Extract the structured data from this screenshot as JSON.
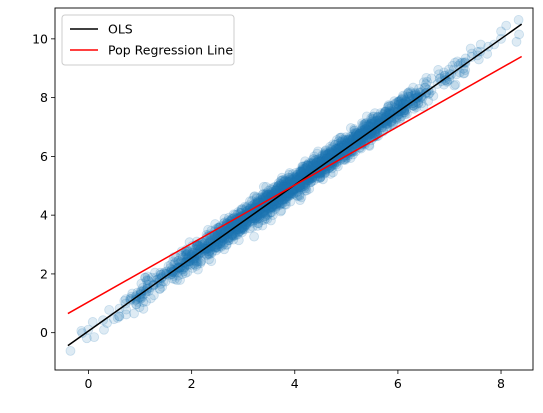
{
  "chart_data": {
    "type": "scatter",
    "title": "",
    "xlabel": "",
    "ylabel": "",
    "xlim": [
      -0.65,
      8.62
    ],
    "ylim": [
      -1.27,
      11.05
    ],
    "xticks": [
      0,
      2,
      4,
      6,
      8
    ],
    "yticks": [
      0,
      2,
      4,
      6,
      8,
      10
    ],
    "grid": false,
    "legend_position": "upper-left",
    "scatter": {
      "color": "#1f77b4",
      "opacity": 0.15,
      "x_range": [
        -0.4,
        8.4
      ],
      "approx_relation": "y ≈ 1.25·x + 0.06",
      "n_points": 2500,
      "sample_points": [
        [
          -0.35,
          -0.62
        ],
        [
          0.3,
          0.1
        ],
        [
          0.6,
          0.55
        ],
        [
          1.0,
          1.3
        ],
        [
          2.0,
          2.6
        ],
        [
          3.0,
          3.8
        ],
        [
          4.0,
          5.1
        ],
        [
          5.0,
          6.3
        ],
        [
          6.0,
          7.6
        ],
        [
          7.0,
          8.8
        ],
        [
          8.0,
          10.0
        ],
        [
          8.35,
          10.15
        ],
        [
          8.1,
          10.45
        ],
        [
          8.3,
          9.9
        ]
      ]
    },
    "series": [
      {
        "name": "OLS",
        "type": "line",
        "color": "#000000",
        "x": [
          -0.4,
          8.4
        ],
        "y": [
          -0.44,
          10.5
        ]
      },
      {
        "name": "Pop Regression Line",
        "type": "line",
        "color": "#ff0000",
        "x": [
          -0.4,
          8.4
        ],
        "y": [
          0.65,
          9.4
        ]
      }
    ]
  }
}
